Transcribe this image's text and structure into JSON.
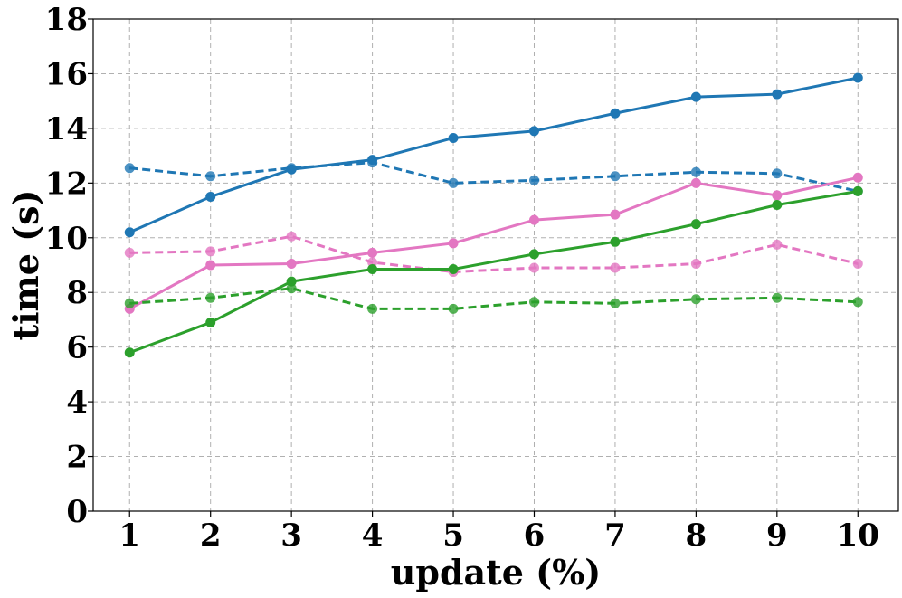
{
  "chart_data": {
    "type": "line",
    "title": "",
    "xlabel": "update (%)",
    "ylabel": "time (s)",
    "x": [
      1,
      2,
      3,
      4,
      5,
      6,
      7,
      8,
      9,
      10
    ],
    "xlim": [
      0.55,
      10.5
    ],
    "ylim": [
      0,
      18
    ],
    "xticks": [
      1,
      2,
      3,
      4,
      5,
      6,
      7,
      8,
      9,
      10
    ],
    "yticks": [
      0,
      2,
      4,
      6,
      8,
      10,
      12,
      14,
      16,
      18
    ],
    "grid": true,
    "legend": "none",
    "series": [
      {
        "color": "#1f77b4",
        "style": "solid",
        "values": [
          10.2,
          11.5,
          12.5,
          12.85,
          13.65,
          13.9,
          14.55,
          15.15,
          15.25,
          15.85
        ]
      },
      {
        "color": "#1f77b4",
        "style": "dashed",
        "values": [
          12.55,
          12.25,
          12.55,
          12.75,
          12.0,
          12.1,
          12.25,
          12.4,
          12.35,
          11.7
        ]
      },
      {
        "color": "#e377c2",
        "style": "solid",
        "values": [
          7.4,
          9.0,
          9.05,
          9.45,
          9.8,
          10.65,
          10.85,
          12.0,
          11.55,
          12.2
        ]
      },
      {
        "color": "#e377c2",
        "style": "dashed",
        "values": [
          9.45,
          9.5,
          10.05,
          9.1,
          8.75,
          8.9,
          8.9,
          9.05,
          9.75,
          9.05
        ]
      },
      {
        "color": "#2ca02c",
        "style": "solid",
        "values": [
          5.8,
          6.9,
          8.4,
          8.85,
          8.85,
          9.4,
          9.85,
          10.5,
          11.2,
          11.7
        ]
      },
      {
        "color": "#2ca02c",
        "style": "dashed",
        "values": [
          7.6,
          7.8,
          8.15,
          7.4,
          7.4,
          7.65,
          7.6,
          7.75,
          7.8,
          7.65
        ]
      }
    ]
  }
}
